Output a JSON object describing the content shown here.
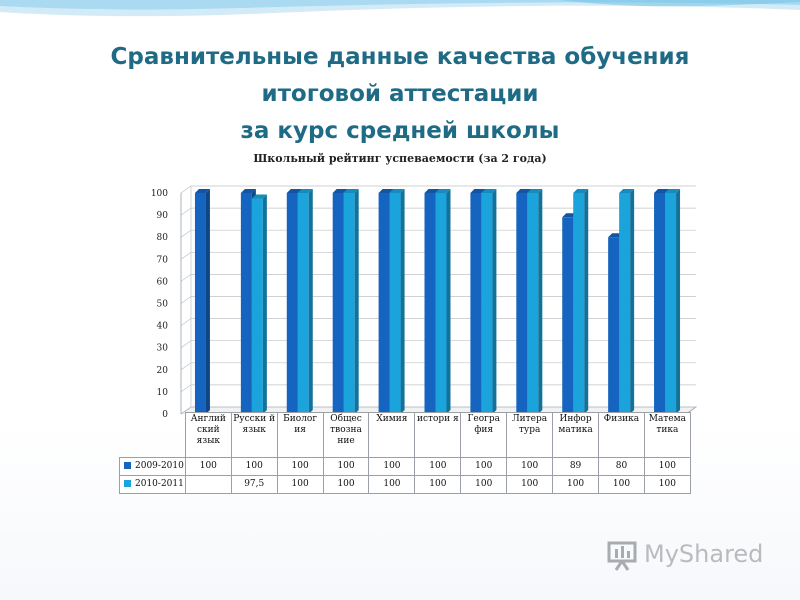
{
  "slide": {
    "title_line1": "Сравнительные данные качества обучения",
    "title_line2": "итоговой аттестации",
    "title_line3": "за курс средней школы",
    "colors": {
      "title": "#1f6b86",
      "series1": "#1565c0",
      "series2": "#1ba3dc"
    }
  },
  "chart_data": {
    "type": "bar",
    "title": "Школьный рейтинг успеваемости (за 2 года)",
    "categories": [
      "Английский язык",
      "Русский язык",
      "Биология",
      "Обществознание",
      "Химия",
      "история",
      "География",
      "Литература",
      "Информатика",
      "Физика",
      "Математика"
    ],
    "category_labels": [
      "Англий ский язык",
      "Русски й язык",
      "Биолог ия",
      "Общес твозна ние",
      "Химия",
      "истори я",
      "Геогра фия",
      "Литера тура",
      "Инфор матика",
      "Физика",
      "Матема тика"
    ],
    "series": [
      {
        "name": "2009-2010",
        "values": [
          100,
          100,
          100,
          100,
          100,
          100,
          100,
          100,
          89,
          80,
          100
        ],
        "labels": [
          "100",
          "100",
          "100",
          "100",
          "100",
          "100",
          "100",
          "100",
          "89",
          "80",
          "100"
        ]
      },
      {
        "name": "2010-2011",
        "values": [
          null,
          97.5,
          100,
          100,
          100,
          100,
          100,
          100,
          100,
          100,
          100
        ],
        "labels": [
          "",
          "97,5",
          "100",
          "100",
          "100",
          "100",
          "100",
          "100",
          "100",
          "100",
          "100"
        ]
      }
    ],
    "ylim": [
      0,
      100
    ],
    "yticks": [
      0,
      10,
      20,
      30,
      40,
      50,
      60,
      70,
      80,
      90,
      100
    ],
    "legend": "data-table",
    "grid": true
  },
  "logo": {
    "text": "MyShared"
  }
}
